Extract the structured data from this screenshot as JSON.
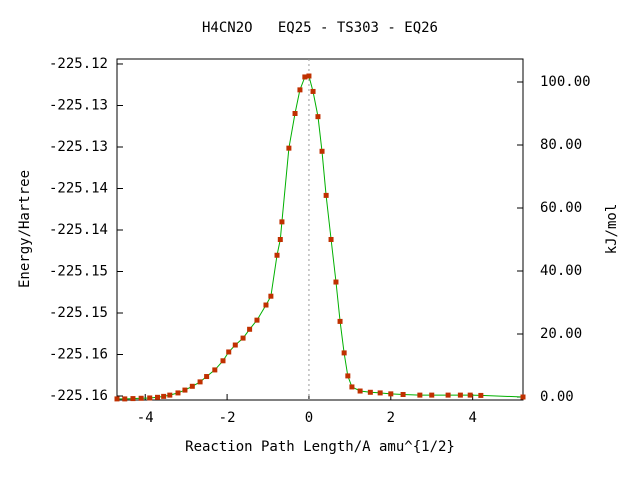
{
  "chart_data": {
    "type": "line",
    "title": "H4CN2O   EQ25 - TS303 - EQ26",
    "x_label": "Reaction Path Length/A amu^{1/2}",
    "y_label": "Energy/Hartree",
    "y2_label": "kJ/mol",
    "xlim": [
      -4.69,
      5.23
    ],
    "xticks": [
      -4,
      -2,
      0,
      2,
      4
    ],
    "ylim": [
      -225.16048,
      -225.1194
    ],
    "yticks": [
      {
        "value": -225.12,
        "label": "-225.12"
      },
      {
        "value": -225.125,
        "label": "-225.13"
      },
      {
        "value": -225.13,
        "label": "-225.13"
      },
      {
        "value": -225.135,
        "label": "-225.14"
      },
      {
        "value": -225.14,
        "label": "-225.14"
      },
      {
        "value": -225.145,
        "label": "-225.15"
      },
      {
        "value": -225.15,
        "label": "-225.15"
      },
      {
        "value": -225.155,
        "label": "-225.16"
      },
      {
        "value": -225.16,
        "label": "-225.16"
      }
    ],
    "y2lim": [
      -0.95,
      107.3
    ],
    "y2ticks": [
      {
        "value": 0,
        "label": "0.00"
      },
      {
        "value": 20,
        "label": "20.00"
      },
      {
        "value": 40,
        "label": "40.00"
      },
      {
        "value": 60,
        "label": "60.00"
      },
      {
        "value": 80,
        "label": "80.00"
      },
      {
        "value": 100,
        "label": "100.00"
      }
    ],
    "vline_x": 0,
    "series": [
      {
        "axis": "y2",
        "line_color": "#00b000",
        "color": "#c03000",
        "x": [
          -4.69,
          -4.5,
          -4.3,
          -4.1,
          -3.89,
          -3.7,
          -3.55,
          -3.4,
          -3.2,
          -3.03,
          -2.85,
          -2.66,
          -2.5,
          -2.3,
          -2.1,
          -1.96,
          -1.8,
          -1.61,
          -1.45,
          -1.27,
          -1.05,
          -0.93,
          -0.78,
          -0.7,
          -0.66,
          -0.49,
          -0.34,
          -0.22,
          -0.1,
          0,
          0.1,
          0.22,
          0.32,
          0.42,
          0.54,
          0.66,
          0.76,
          0.86,
          0.95,
          1.05,
          1.25,
          1.5,
          1.74,
          2.0,
          2.3,
          2.71,
          3.0,
          3.4,
          3.7,
          3.94,
          4.2,
          5.23
        ],
        "values": [
          -0.6,
          -0.6,
          -0.5,
          -0.4,
          -0.3,
          -0.1,
          0.2,
          0.6,
          1.3,
          2.2,
          3.4,
          4.8,
          6.5,
          8.6,
          11.5,
          14.3,
          16.5,
          18.7,
          21.5,
          24.4,
          29.2,
          32,
          45,
          50,
          55.6,
          79,
          90,
          97.5,
          101.6,
          101.9,
          97,
          89,
          78,
          64,
          50,
          36.5,
          24,
          14,
          6.7,
          3.2,
          1.9,
          1.5,
          1.3,
          1.0,
          0.8,
          0.6,
          0.6,
          0.6,
          0.6,
          0.6,
          0.5,
          0
        ]
      }
    ]
  }
}
